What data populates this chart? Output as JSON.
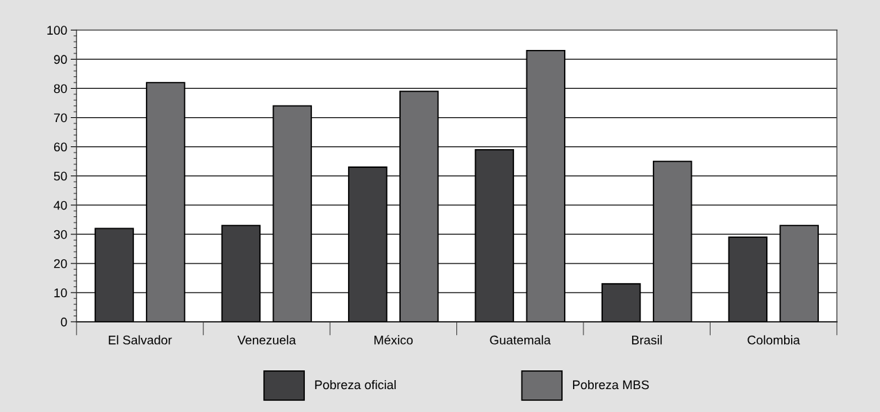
{
  "chart_data": {
    "type": "bar",
    "categories": [
      "El Salvador",
      "Venezuela",
      "México",
      "Guatemala",
      "Brasil",
      "Colombia"
    ],
    "series": [
      {
        "name": "Pobreza oficial",
        "color": "#404042",
        "values": [
          32,
          33,
          53,
          59,
          13,
          29
        ]
      },
      {
        "name": "Pobreza MBS",
        "color": "#6e6e70",
        "values": [
          82,
          74,
          79,
          93,
          55,
          33
        ]
      }
    ],
    "ylim": [
      0,
      100
    ],
    "yticks": [
      0,
      10,
      20,
      30,
      40,
      50,
      60,
      70,
      80,
      90,
      100
    ],
    "grid": "y",
    "legend": "bottom"
  }
}
